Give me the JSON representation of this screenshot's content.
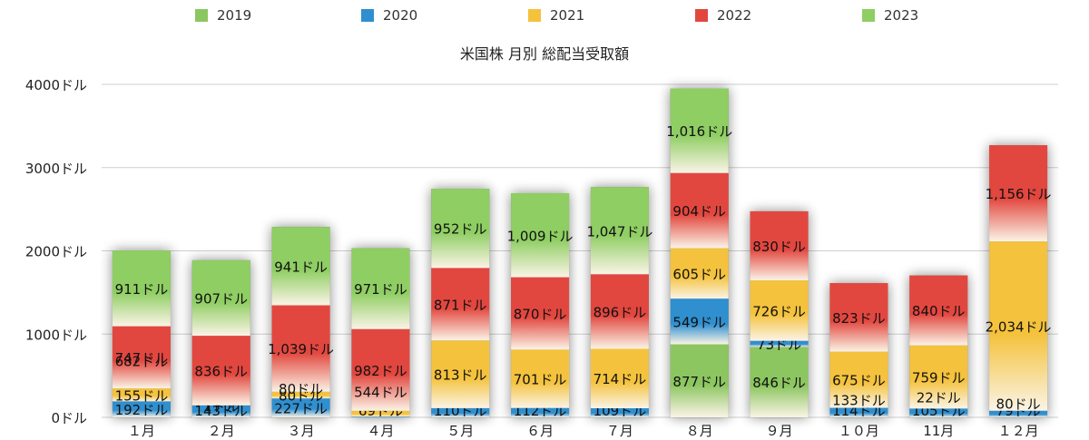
{
  "chart_data": {
    "type": "bar",
    "stacked": true,
    "title": "米国株 月別 総配当受取額",
    "categories": [
      "１月",
      "２月",
      "３月",
      "４月",
      "５月",
      "６月",
      "７月",
      "８月",
      "９月",
      "１０月",
      "11月",
      "１２月"
    ],
    "series": [
      {
        "name": "2019",
        "color": "#8cc660",
        "values": [
          0,
          0,
          0,
          0,
          0,
          0,
          0,
          877,
          846,
          0,
          0,
          0
        ],
        "labels": [
          "",
          "",
          "",
          "",
          "",
          "",
          "",
          "877ドル",
          "846ドル",
          "",
          "",
          ""
        ]
      },
      {
        "name": "2020",
        "color": "#2f8fcf",
        "values": [
          192,
          143,
          227,
          9,
          110,
          112,
          109,
          549,
          73,
          114,
          105,
          79
        ],
        "labels": [
          "192ドル",
          "143ドル",
          "227ドル",
          "9ドル",
          "110ドル",
          "112ドル",
          "109ドル",
          "549ドル",
          "73ドル",
          "114ドル",
          "105ドル",
          "79ドル"
        ]
      },
      {
        "name": "2021",
        "color": "#f4c23c",
        "values": [
          155,
          1,
          80,
          69,
          813,
          701,
          714,
          605,
          726,
          675,
          759,
          2034
        ],
        "labels": [
          "155ドル",
          "1ドル",
          "80ドル",
          "69ドル",
          "813ドル",
          "701ドル",
          "714ドル",
          "605ドル",
          "726ドル",
          "675ドル",
          "759ドル",
          "2,034ドル"
        ]
      },
      {
        "name": "2022",
        "color": "#e2473f",
        "values": [
          747,
          836,
          1039,
          982,
          871,
          870,
          896,
          904,
          830,
          823,
          840,
          1156
        ],
        "labels": [
          "747ドル",
          "836ドル",
          "1,039ドル",
          "982ドル",
          "871ドル",
          "870ドル",
          "896ドル",
          "904ドル",
          "830ドル",
          "823ドル",
          "840ドル",
          "1,156ドル"
        ]
      },
      {
        "name": "2023",
        "color": "#8fce63",
        "values": [
          911,
          907,
          941,
          971,
          952,
          1009,
          1047,
          1016,
          0,
          0,
          0,
          0
        ],
        "labels": [
          "911ドル",
          "907ドル",
          "941ドル",
          "971ドル",
          "952ドル",
          "1,009ドル",
          "1,047ドル",
          "1,016ドル",
          "",
          "",
          "",
          ""
        ]
      }
    ],
    "extra_labels": [
      {
        "category_index": 0,
        "text": "682ドル"
      },
      {
        "category_index": 3,
        "text": "544ドル"
      },
      {
        "category_index": 2,
        "text": "80ドル"
      },
      {
        "category_index": 11,
        "text": "80ドル"
      },
      {
        "category_index": 9,
        "text": "133ドル"
      },
      {
        "category_index": 10,
        "text": "22ドル"
      }
    ],
    "yticks": [
      "0ドル",
      "1000ドル",
      "2000ドル",
      "3000ドル",
      "4000ドル"
    ],
    "ylim": [
      0,
      4000
    ],
    "grid": true,
    "legend_position": "top"
  }
}
